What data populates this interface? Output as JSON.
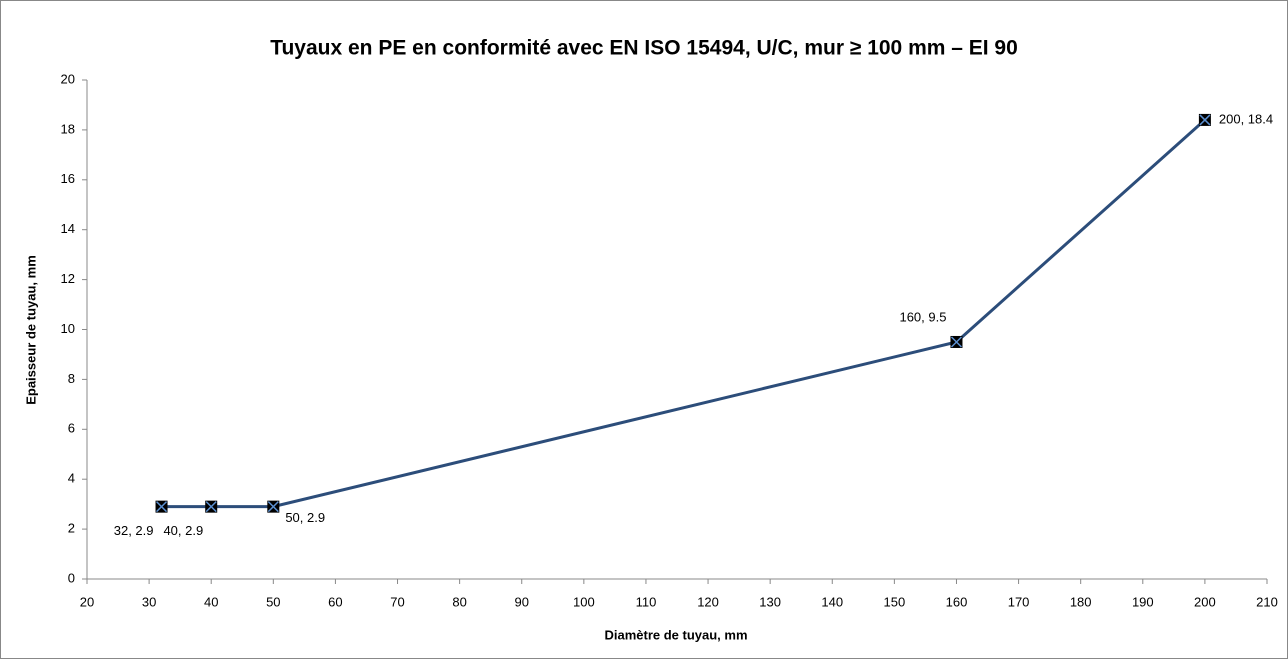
{
  "chart_data": {
    "type": "line",
    "title": "Tuyaux en PE en conformité avec EN ISO 15494, U/C, mur ≥ 100 mm – EI 90",
    "xlabel": "Diamètre de tuyau, mm",
    "ylabel": "Epaisseur de tuyau, mm",
    "x": [
      32,
      40,
      50,
      160,
      200
    ],
    "series": [
      {
        "color": "#2c4d7a",
        "values": [
          2.9,
          2.9,
          2.9,
          9.5,
          18.4
        ],
        "value_labels": [
          "32, 2.9",
          "40, 2.9",
          "50, 2.9",
          "160, 9.5",
          "200, 18.4"
        ]
      }
    ],
    "xlim": [
      20,
      210
    ],
    "xticks": [
      20,
      30,
      40,
      50,
      60,
      70,
      80,
      90,
      100,
      110,
      120,
      130,
      140,
      150,
      160,
      170,
      180,
      190,
      200,
      210
    ],
    "ylim": [
      0,
      20
    ],
    "yticks": [
      0,
      2,
      4,
      6,
      8,
      10,
      12,
      14,
      16,
      18,
      20
    ],
    "grid": false
  }
}
